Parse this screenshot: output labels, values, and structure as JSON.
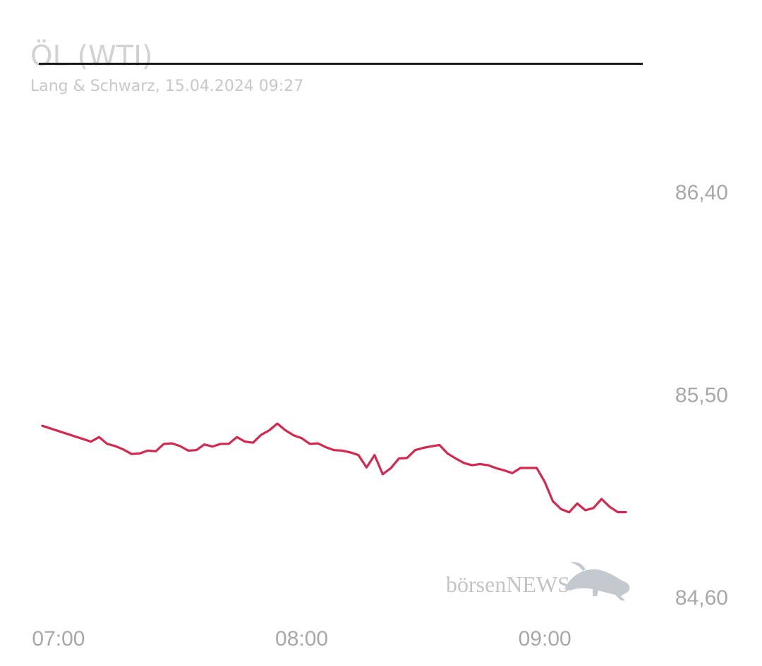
{
  "chart_data": {
    "type": "line",
    "title": "ÖL (WTI)",
    "subtitle": "Lang & Schwarz, 15.04.2024 09:27",
    "xlabel": "",
    "ylabel": "",
    "x_unit": "minutes after 07:00",
    "x_range": [
      0,
      148
    ],
    "xticks": [
      {
        "label": "07:00",
        "x": 4
      },
      {
        "label": "08:00",
        "x": 64
      },
      {
        "label": "09:00",
        "x": 124
      }
    ],
    "ylim": [
      84.6,
      86.4
    ],
    "yticks": [
      {
        "label": "86,40",
        "y": 86.4
      },
      {
        "label": "85,50",
        "y": 85.5
      },
      {
        "label": "84,60",
        "y": 84.6
      }
    ],
    "grid": false,
    "series": [
      {
        "name": "",
        "color": "#d4284f",
        "points": [
          [
            0.0,
            85.36
          ],
          [
            12.0,
            85.29
          ],
          [
            14.0,
            85.31
          ],
          [
            16.0,
            85.28
          ],
          [
            18.0,
            85.27
          ],
          [
            20.0,
            85.255
          ],
          [
            22.0,
            85.235
          ],
          [
            24.0,
            85.237
          ],
          [
            26.0,
            85.25
          ],
          [
            28.0,
            85.247
          ],
          [
            30.0,
            85.28
          ],
          [
            32.0,
            85.282
          ],
          [
            34.0,
            85.27
          ],
          [
            36.0,
            85.25
          ],
          [
            38.0,
            85.252
          ],
          [
            40.0,
            85.277
          ],
          [
            42.0,
            85.268
          ],
          [
            44.0,
            85.28
          ],
          [
            46.0,
            85.28
          ],
          [
            48.0,
            85.31
          ],
          [
            50.0,
            85.29
          ],
          [
            52.0,
            85.285
          ],
          [
            54.0,
            85.32
          ],
          [
            56.0,
            85.34
          ],
          [
            58.0,
            85.37
          ],
          [
            60.0,
            85.34
          ],
          [
            62.0,
            85.318
          ],
          [
            64.0,
            85.305
          ],
          [
            66.0,
            85.28
          ],
          [
            68.0,
            85.282
          ],
          [
            70.0,
            85.265
          ],
          [
            72.0,
            85.252
          ],
          [
            74.0,
            85.25
          ],
          [
            76.0,
            85.242
          ],
          [
            78.0,
            85.23
          ],
          [
            80.0,
            85.175
          ],
          [
            82.0,
            85.23
          ],
          [
            84.0,
            85.145
          ],
          [
            86.0,
            85.172
          ],
          [
            88.0,
            85.215
          ],
          [
            90.0,
            85.217
          ],
          [
            92.0,
            85.252
          ],
          [
            94.0,
            85.262
          ],
          [
            96.0,
            85.269
          ],
          [
            98.0,
            85.275
          ],
          [
            100.0,
            85.237
          ],
          [
            102.0,
            85.215
          ],
          [
            104.0,
            85.195
          ],
          [
            106.0,
            85.185
          ],
          [
            108.0,
            85.19
          ],
          [
            110.0,
            85.185
          ],
          [
            112.0,
            85.172
          ],
          [
            114.0,
            85.162
          ],
          [
            116.0,
            85.15
          ],
          [
            118.0,
            85.173
          ],
          [
            120.0,
            85.173
          ],
          [
            122.0,
            85.173
          ],
          [
            124.0,
            85.11
          ],
          [
            126.0,
            85.025
          ],
          [
            128.0,
            84.99
          ],
          [
            130.0,
            84.976
          ],
          [
            132.0,
            85.015
          ],
          [
            134.0,
            84.985
          ],
          [
            136.0,
            84.995
          ],
          [
            138.0,
            85.035
          ],
          [
            140.0,
            85.0
          ],
          [
            142.0,
            84.977
          ],
          [
            144.0,
            84.977
          ]
        ]
      }
    ]
  },
  "watermark": {
    "text": "börsenNEWS",
    "icon": "bull-icon"
  }
}
